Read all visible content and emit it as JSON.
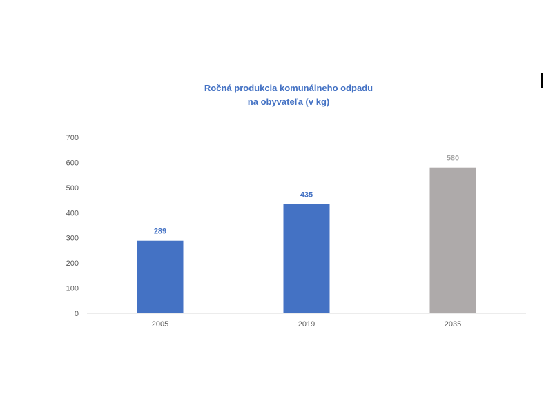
{
  "chart_data": {
    "type": "bar",
    "title_lines": [
      "Ročná produkcia komunálneho odpadu",
      "na obyvateľa (v kg)"
    ],
    "categories": [
      "2005",
      "2019",
      "2035"
    ],
    "values": [
      289,
      435,
      580
    ],
    "data_labels": [
      "289",
      "435",
      "580"
    ],
    "bar_colors": [
      "#4472c4",
      "#4472c4",
      "#aeaaaa"
    ],
    "label_colors": [
      "#4472c4",
      "#4472c4",
      "#a6a6a6"
    ],
    "ylim": [
      0,
      700
    ],
    "yticks": [
      "0",
      "100",
      "200",
      "300",
      "400",
      "500",
      "600",
      "700"
    ],
    "grid": false,
    "xlabel": "",
    "ylabel": ""
  }
}
